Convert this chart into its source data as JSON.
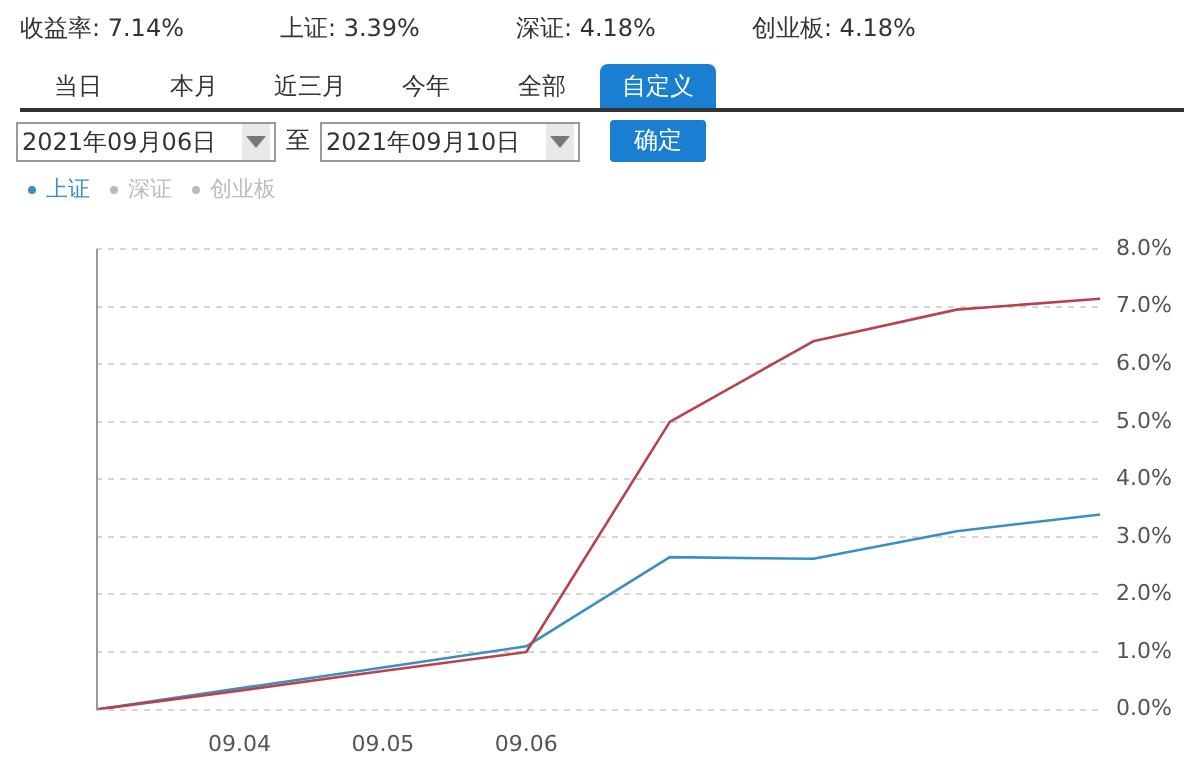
{
  "chart_data": {
    "type": "line",
    "categories": [
      null,
      "09.04",
      "09.05",
      "09.06",
      null,
      null,
      null,
      null
    ],
    "series": [
      {
        "color": "#b8434c",
        "values": [
          0,
          0.33,
          0.67,
          1.0,
          5.0,
          6.4,
          6.95,
          7.14
        ]
      },
      {
        "name": "上证",
        "color": "#3a8fc4",
        "values": [
          0,
          0.37,
          0.73,
          1.1,
          2.65,
          2.62,
          3.1,
          3.39
        ]
      },
      {
        "name": "深证",
        "color": "#bbbbbb",
        "values": [
          null,
          null,
          null,
          null,
          null,
          null,
          null,
          null
        ]
      },
      {
        "name": "创业板",
        "color": "#bbbbbb",
        "values": [
          null,
          null,
          null,
          null,
          null,
          null,
          null,
          null
        ]
      }
    ],
    "ylim": [
      0,
      8
    ],
    "yticks": [
      {
        "value": 0,
        "label": "0.0%"
      },
      {
        "value": 1,
        "label": "1.0%"
      },
      {
        "value": 2,
        "label": "2.0%"
      },
      {
        "value": 3,
        "label": "3.0%"
      },
      {
        "value": 4,
        "label": "4.0%"
      },
      {
        "value": 5,
        "label": "5.0%"
      },
      {
        "value": 6,
        "label": "6.0%"
      },
      {
        "value": 7,
        "label": "7.0%"
      },
      {
        "value": 8,
        "label": "8.0%"
      }
    ],
    "grid": "y",
    "legend": "top left",
    "line_style": "solid",
    "marker": "none",
    "annotations": [
      "收益率: 7.14%",
      "上证: 3.39%",
      "深证: 4.18%",
      "创业板: 4.18%",
      "当日",
      "本月",
      "近三月",
      "今年",
      "全部",
      "自定义",
      "2021年09月06日",
      "至",
      "2021年09月10日",
      "确定"
    ]
  }
}
